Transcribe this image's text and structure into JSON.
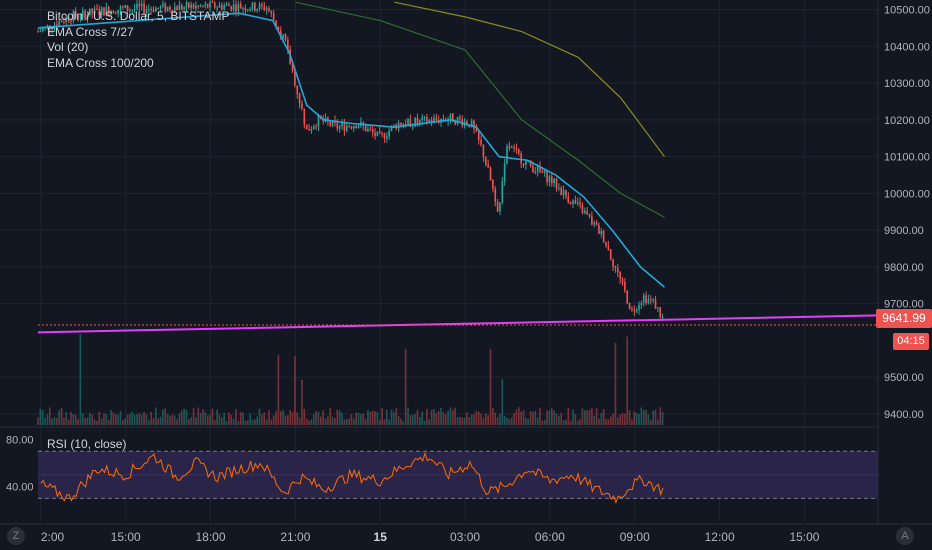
{
  "legend": {
    "symbol": "Bitcoin / U.S. Dollar, 5, BITSTAMP",
    "ema_fast": "EMA Cross 7/27",
    "volume": "Vol (20)",
    "ema_slow": "EMA Cross 100/200"
  },
  "rsi_legend": "RSI (10, close)",
  "price_tag": "9641.99",
  "time_tag": "04:15",
  "buttons": {
    "zoom": "Z",
    "auto": "A"
  },
  "colors": {
    "background": "#131722",
    "grid": "#1f2433",
    "up": "#26a69a",
    "down": "#ef5350",
    "ema_fast": "#22a8d8",
    "ema100": "#2f6e2a",
    "ema200": "#8a8a1f",
    "trendline": "#e040fb",
    "rsi": "#ff6d00",
    "rsi_band": "#2a2448"
  },
  "chart_data": [
    {
      "type": "candlestick",
      "title": "Bitcoin / U.S. Dollar, 5, BITSTAMP",
      "x_tick_labels": [
        "2:00",
        "15:00",
        "18:00",
        "21:00",
        "15",
        "03:00",
        "06:00",
        "09:00",
        "12:00",
        "15:00"
      ],
      "x_tick_hours": [
        12,
        15,
        18,
        21,
        24,
        27,
        30,
        33,
        36,
        39
      ],
      "x_range_hours": [
        11.9,
        41.6
      ],
      "data_end_hours": 34.05,
      "y_tick_labels": [
        "10500.00",
        "10400.00",
        "10300.00",
        "10200.00",
        "10100.00",
        "10000.00",
        "9900.00",
        "9800.00",
        "9700.00",
        "9500.00",
        "9400.00"
      ],
      "y_ticks": [
        10500,
        10400,
        10300,
        10200,
        10100,
        10000,
        9900,
        9800,
        9700,
        9500,
        9400
      ],
      "ylim": [
        9370,
        10515
      ],
      "last_price": 9641.99,
      "price_anchors": [
        [
          11.9,
          10440
        ],
        [
          13.0,
          10480
        ],
        [
          14.5,
          10500
        ],
        [
          16.5,
          10505
        ],
        [
          18.5,
          10510
        ],
        [
          20.0,
          10505
        ],
        [
          20.6,
          10420
        ],
        [
          21.0,
          10300
        ],
        [
          21.4,
          10170
        ],
        [
          21.8,
          10200
        ],
        [
          22.5,
          10180
        ],
        [
          23.2,
          10190
        ],
        [
          24.0,
          10150
        ],
        [
          24.6,
          10190
        ],
        [
          25.5,
          10195
        ],
        [
          26.5,
          10205
        ],
        [
          27.2,
          10190
        ],
        [
          27.6,
          10120
        ],
        [
          28.2,
          9950
        ],
        [
          28.5,
          10130
        ],
        [
          29.2,
          10080
        ],
        [
          30.0,
          10040
        ],
        [
          30.6,
          9990
        ],
        [
          31.2,
          9950
        ],
        [
          31.9,
          9880
        ],
        [
          32.5,
          9760
        ],
        [
          32.9,
          9680
        ],
        [
          33.3,
          9720
        ],
        [
          33.7,
          9700
        ],
        [
          34.05,
          9650
        ]
      ],
      "ema_fast_anchors": [
        [
          11.9,
          10450
        ],
        [
          19.0,
          10490
        ],
        [
          20.2,
          10470
        ],
        [
          20.8,
          10380
        ],
        [
          21.4,
          10240
        ],
        [
          22.0,
          10200
        ],
        [
          23.0,
          10190
        ],
        [
          24.5,
          10180
        ],
        [
          26.5,
          10200
        ],
        [
          27.4,
          10180
        ],
        [
          28.2,
          10100
        ],
        [
          29.2,
          10090
        ],
        [
          30.2,
          10050
        ],
        [
          31.2,
          9990
        ],
        [
          32.2,
          9900
        ],
        [
          33.2,
          9800
        ],
        [
          34.05,
          9745
        ]
      ],
      "ema100_anchors": [
        [
          21.0,
          10520
        ],
        [
          24.0,
          10470
        ],
        [
          27.0,
          10390
        ],
        [
          29.0,
          10200
        ],
        [
          31.0,
          10090
        ],
        [
          32.5,
          10000
        ],
        [
          34.05,
          9935
        ]
      ],
      "ema200_anchors": [
        [
          24.5,
          10520
        ],
        [
          27.0,
          10480
        ],
        [
          29.0,
          10440
        ],
        [
          31.0,
          10370
        ],
        [
          32.5,
          10260
        ],
        [
          34.05,
          10100
        ]
      ],
      "trendline": {
        "start": [
          11.9,
          9622
        ],
        "end": [
          41.6,
          9668
        ]
      },
      "last_price_line": 9641.99
    },
    {
      "type": "bar",
      "title": "Vol (20)",
      "note": "volume histogram overlaid on price pane, relative scale",
      "spike_hours": [
        13.4,
        20.4,
        21.0,
        21.2,
        24.9,
        27.9,
        28.3,
        32.3,
        32.7
      ]
    },
    {
      "type": "line",
      "title": "RSI (10, close)",
      "y_tick_labels": [
        "80.00",
        "40.00"
      ],
      "y_ticks": [
        80,
        40
      ],
      "ylim": [
        10,
        88
      ],
      "bands": [
        70,
        30
      ],
      "values_anchors": [
        [
          12.0,
          42
        ],
        [
          13.0,
          30
        ],
        [
          14.0,
          55
        ],
        [
          15.0,
          50
        ],
        [
          16.0,
          66
        ],
        [
          16.8,
          48
        ],
        [
          17.5,
          60
        ],
        [
          18.2,
          48
        ],
        [
          19.0,
          55
        ],
        [
          19.8,
          60
        ],
        [
          20.6,
          35
        ],
        [
          21.2,
          48
        ],
        [
          22.0,
          38
        ],
        [
          23.0,
          50
        ],
        [
          24.0,
          45
        ],
        [
          25.0,
          60
        ],
        [
          25.7,
          66
        ],
        [
          26.4,
          50
        ],
        [
          27.2,
          60
        ],
        [
          27.8,
          35
        ],
        [
          28.4,
          40
        ],
        [
          29.2,
          55
        ],
        [
          30.0,
          45
        ],
        [
          30.8,
          50
        ],
        [
          31.6,
          38
        ],
        [
          32.4,
          30
        ],
        [
          32.8,
          40
        ],
        [
          33.3,
          46
        ],
        [
          34.05,
          36
        ]
      ]
    }
  ]
}
